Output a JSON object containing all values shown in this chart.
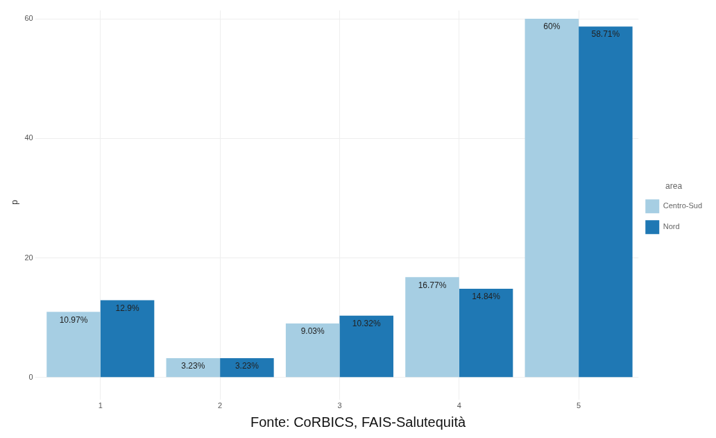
{
  "chart_data": {
    "type": "bar",
    "ylabel": "p",
    "legend_title": "area",
    "categories": [
      "1",
      "2",
      "3",
      "4",
      "5"
    ],
    "series": [
      {
        "name": "Centro-Sud",
        "color": "#a6cee3",
        "values": [
          10.97,
          3.23,
          9.03,
          16.77,
          60
        ],
        "value_labels": [
          "10.97%",
          "3.23%",
          "9.03%",
          "16.77%",
          "60%"
        ]
      },
      {
        "name": "Nord",
        "color": "#1f78b4",
        "values": [
          12.9,
          3.23,
          10.32,
          14.84,
          58.71
        ],
        "value_labels": [
          "12.9%",
          "3.23%",
          "10.32%",
          "14.84%",
          "58.71%"
        ]
      }
    ],
    "ylim": [
      -2.8,
      61.4
    ],
    "yticks": [
      0,
      20,
      40,
      60
    ],
    "grid": true,
    "legend": "right",
    "annotations": [
      "Fonte: CoRBICS, FAIS-Salutequità"
    ]
  }
}
